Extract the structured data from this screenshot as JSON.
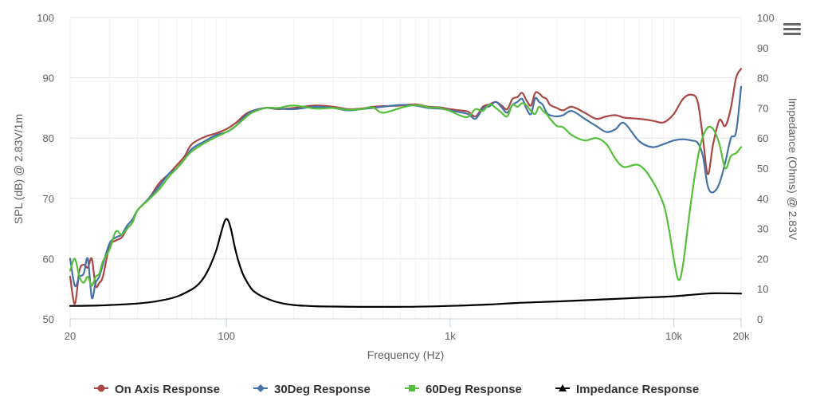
{
  "menu": {
    "icon": "hamburger-menu-icon"
  },
  "chart_data": {
    "type": "line",
    "title": "",
    "xlabel": "Frequency (Hz)",
    "ylabel": "SPL (dB) @ 2.83V/1m",
    "y2label": "Impedance (Ohms) @ 2.83V",
    "xscale": "log",
    "xlim": [
      20,
      20000
    ],
    "ylim": [
      50,
      100
    ],
    "y2lim": [
      0,
      100
    ],
    "grid": true,
    "legend_position": "bottom",
    "x_ticks": [
      {
        "value": 20,
        "label": "20"
      },
      {
        "value": 100,
        "label": "100"
      },
      {
        "value": 1000,
        "label": "1k"
      },
      {
        "value": 10000,
        "label": "10k"
      },
      {
        "value": 20000,
        "label": "20k"
      }
    ],
    "y_ticks": [
      {
        "value": 50,
        "label": "50"
      },
      {
        "value": 60,
        "label": "60"
      },
      {
        "value": 70,
        "label": "70"
      },
      {
        "value": 80,
        "label": "80"
      },
      {
        "value": 90,
        "label": "90"
      },
      {
        "value": 100,
        "label": "100"
      }
    ],
    "y2_ticks": [
      {
        "value": 0,
        "label": "0"
      },
      {
        "value": 10,
        "label": "10"
      },
      {
        "value": 20,
        "label": "20"
      },
      {
        "value": 30,
        "label": "30"
      },
      {
        "value": 40,
        "label": "40"
      },
      {
        "value": 50,
        "label": "50"
      },
      {
        "value": 60,
        "label": "60"
      },
      {
        "value": 70,
        "label": "70"
      },
      {
        "value": 80,
        "label": "80"
      },
      {
        "value": 90,
        "label": "90"
      },
      {
        "value": 100,
        "label": "100"
      }
    ],
    "series": [
      {
        "name": "On Axis Response",
        "color": "#aa4643",
        "marker": "circle",
        "axis": "left",
        "x": [
          20,
          21,
          22,
          23,
          24,
          25,
          26,
          27,
          28,
          30,
          32,
          34,
          36,
          38,
          40,
          45,
          50,
          55,
          60,
          65,
          70,
          80,
          90,
          100,
          110,
          120,
          130,
          150,
          170,
          200,
          250,
          300,
          350,
          400,
          450,
          500,
          600,
          700,
          800,
          900,
          1000,
          1100,
          1200,
          1300,
          1400,
          1500,
          1600,
          1700,
          1800,
          1900,
          2000,
          2100,
          2200,
          2300,
          2400,
          2500,
          2600,
          2700,
          2800,
          3000,
          3200,
          3500,
          4000,
          4500,
          5000,
          5500,
          6000,
          7000,
          8000,
          9000,
          10000,
          11000,
          12000,
          12800,
          13500,
          14200,
          15000,
          16000,
          17000,
          18000,
          19000,
          20000
        ],
        "y": [
          57,
          52.5,
          58,
          59,
          58.5,
          60,
          55.5,
          56,
          57,
          62,
          63,
          63.5,
          65,
          66,
          68,
          70,
          72.5,
          74,
          75.5,
          77,
          79,
          80.2,
          80.8,
          81.5,
          82.5,
          83.8,
          84.5,
          85,
          84.8,
          85,
          85.4,
          85.2,
          84.8,
          84.9,
          85.2,
          85.3,
          85.4,
          85.6,
          85.2,
          85.1,
          84.8,
          84.6,
          84.4,
          83.6,
          85.2,
          85.6,
          86,
          85.4,
          84.8,
          86.5,
          86.8,
          87.5,
          86.2,
          85.4,
          87.5,
          87.4,
          86.8,
          86.5,
          85.5,
          85,
          84.6,
          85.2,
          84.2,
          83.2,
          83.6,
          83.8,
          83.4,
          83.2,
          82.9,
          82.6,
          84,
          86.5,
          87.2,
          86,
          80,
          74,
          79,
          83,
          82,
          85,
          90,
          91.5
        ]
      },
      {
        "name": "30Deg Response",
        "color": "#4572a7",
        "marker": "diamond",
        "axis": "left",
        "x": [
          20,
          21,
          22,
          23,
          24,
          25,
          26,
          27,
          28,
          30,
          32,
          34,
          36,
          38,
          40,
          45,
          50,
          55,
          60,
          65,
          70,
          80,
          90,
          100,
          110,
          120,
          130,
          150,
          170,
          200,
          250,
          300,
          350,
          400,
          450,
          500,
          600,
          700,
          800,
          900,
          1000,
          1100,
          1200,
          1300,
          1400,
          1500,
          1600,
          1700,
          1800,
          1900,
          2000,
          2100,
          2200,
          2300,
          2400,
          2500,
          2600,
          2700,
          2800,
          3000,
          3200,
          3500,
          4000,
          4500,
          5000,
          5500,
          6000,
          7000,
          8000,
          9000,
          10000,
          11000,
          12000,
          12800,
          13500,
          14200,
          15000,
          16000,
          17000,
          18000,
          19000,
          20000
        ],
        "y": [
          60,
          55.5,
          57,
          57.5,
          60,
          53.5,
          56,
          57,
          59,
          62.5,
          63.5,
          64,
          65.5,
          66.5,
          68,
          70,
          72,
          74,
          75,
          76.5,
          78.2,
          79.5,
          80.5,
          81,
          82,
          83.5,
          84.4,
          85,
          84.9,
          84.8,
          85.2,
          85,
          84.6,
          84.8,
          85,
          85.2,
          85.5,
          85.4,
          85,
          84.9,
          84.6,
          84.3,
          84,
          83.2,
          84.9,
          85.3,
          86,
          85.1,
          84.2,
          85.5,
          86,
          86.5,
          84.8,
          84,
          86.6,
          86,
          85.5,
          84.2,
          83.8,
          83.6,
          83.8,
          84.5,
          83.2,
          82,
          81,
          81.5,
          82.5,
          79.5,
          78.5,
          79,
          79.6,
          79.8,
          79.6,
          79.2,
          77,
          72,
          71,
          72.5,
          76,
          80,
          81,
          88.5
        ]
      },
      {
        "name": "60Deg Response",
        "color": "#55bf3b",
        "marker": "square",
        "axis": "left",
        "x": [
          20,
          21,
          22,
          23,
          24,
          25,
          26,
          27,
          28,
          30,
          32,
          34,
          36,
          38,
          40,
          45,
          50,
          55,
          60,
          65,
          70,
          80,
          90,
          100,
          110,
          120,
          130,
          150,
          170,
          200,
          250,
          300,
          350,
          400,
          450,
          500,
          600,
          700,
          800,
          900,
          1000,
          1100,
          1200,
          1300,
          1400,
          1500,
          1600,
          1700,
          1800,
          1900,
          2000,
          2100,
          2200,
          2300,
          2400,
          2500,
          2600,
          2700,
          2800,
          3000,
          3200,
          3500,
          4000,
          4500,
          5000,
          5500,
          6000,
          7000,
          8000,
          9000,
          9500,
          10000,
          10500,
          11000,
          12000,
          13000,
          14000,
          15000,
          16000,
          17000,
          18000,
          19000,
          20000
        ],
        "y": [
          58,
          60,
          57,
          56,
          57,
          55.5,
          57,
          57.5,
          59.5,
          61.5,
          64.5,
          64,
          65,
          66,
          68,
          69.8,
          71.5,
          73.5,
          75,
          76.5,
          77.8,
          79.2,
          80.2,
          81,
          82,
          83.2,
          84.2,
          85,
          85,
          85.4,
          84.9,
          85,
          84.7,
          84.8,
          85.1,
          84.2,
          85,
          85.5,
          85.1,
          85,
          84.5,
          83.8,
          83.5,
          84.8,
          84.5,
          85.6,
          85,
          84.2,
          83.6,
          85.5,
          85.2,
          85.8,
          85.4,
          84.5,
          84,
          85.2,
          84.5,
          84,
          83.2,
          82,
          81.8,
          80.5,
          79.6,
          80,
          79,
          76.5,
          75.2,
          75.5,
          73,
          69,
          65,
          60,
          56.5,
          59,
          70,
          78,
          81.5,
          81.5,
          79,
          75,
          77,
          77.5,
          78.5
        ]
      },
      {
        "name": "Impedance Response",
        "color": "#000000",
        "marker": "triangle",
        "axis": "right",
        "x": [
          20,
          25,
          30,
          40,
          50,
          60,
          70,
          75,
          80,
          85,
          90,
          93,
          96,
          98,
          100,
          102,
          105,
          110,
          115,
          120,
          130,
          140,
          150,
          170,
          200,
          250,
          300,
          400,
          500,
          700,
          1000,
          1500,
          2000,
          3000,
          5000,
          7000,
          10000,
          12000,
          15000,
          20000
        ],
        "y": [
          4.3,
          4.4,
          4.6,
          5.1,
          6,
          7.4,
          9.8,
          11.5,
          14.2,
          18,
          22.7,
          26.5,
          30.2,
          32.3,
          33.2,
          32.5,
          29.5,
          22.5,
          17.5,
          14,
          9.8,
          8,
          6.9,
          5.5,
          4.6,
          4.2,
          4.1,
          4,
          4,
          4.05,
          4.3,
          4.8,
          5.3,
          5.8,
          6.5,
          7,
          7.5,
          8,
          8.5,
          8.4
        ]
      }
    ]
  }
}
